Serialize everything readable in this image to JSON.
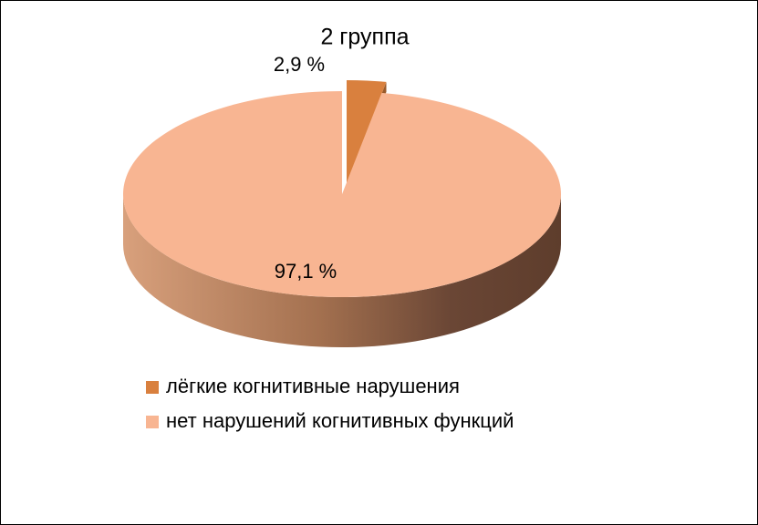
{
  "chart_data": {
    "type": "pie3d",
    "title": "2 группа",
    "categories": [
      "лёгкие когнитивные нарушения",
      "нет нарушений когнитивных функций"
    ],
    "values": [
      2.9,
      97.1
    ],
    "value_labels": [
      "2,9 %",
      "97,1 %"
    ],
    "colors": [
      "#d9803e",
      "#f8b592"
    ],
    "legend": "bottom"
  }
}
